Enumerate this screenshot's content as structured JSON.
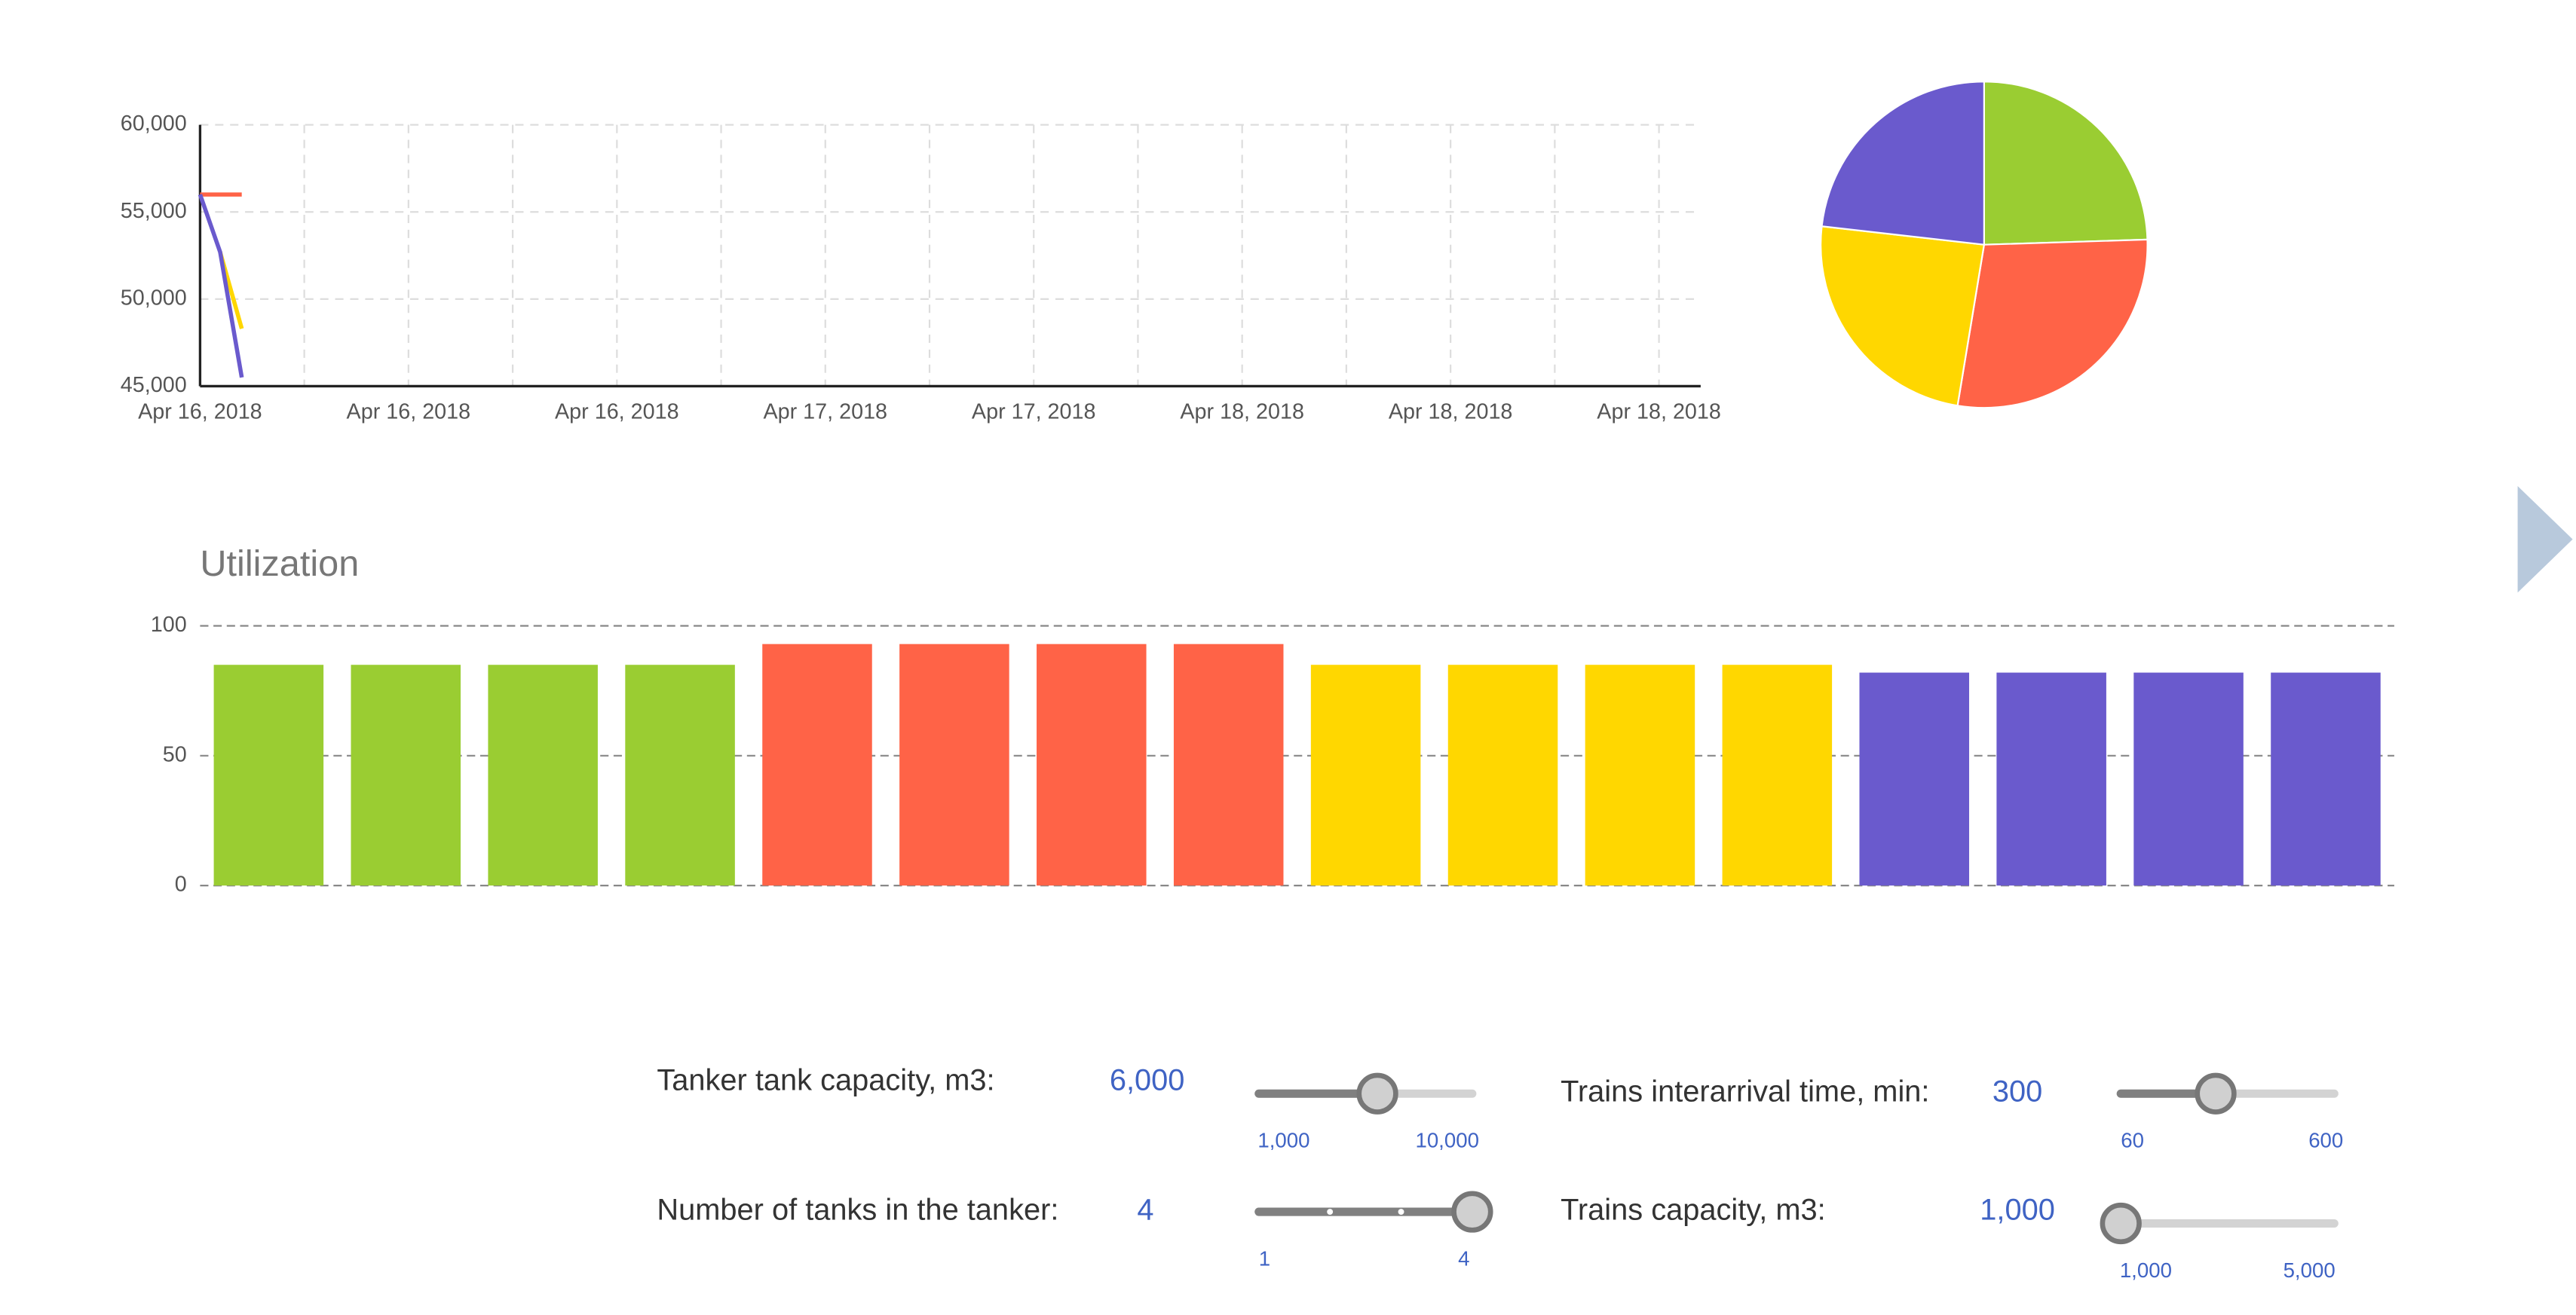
{
  "chart_data": [
    {
      "type": "line",
      "x": [
        0,
        0.77,
        1.6
      ],
      "xlim": [
        0,
        57.6
      ],
      "xticks": [
        {
          "value": 0,
          "label": "Apr 16, 2018"
        },
        {
          "value": 8,
          "label": "Apr 16, 2018"
        },
        {
          "value": 16,
          "label": "Apr 16, 2018"
        },
        {
          "value": 24,
          "label": "Apr 17, 2018"
        },
        {
          "value": 32,
          "label": "Apr 17, 2018"
        },
        {
          "value": 40,
          "label": "Apr 18, 2018"
        },
        {
          "value": 48,
          "label": "Apr 18, 2018"
        },
        {
          "value": 56,
          "label": "Apr 18, 2018"
        }
      ],
      "ylim": [
        45000,
        60000
      ],
      "yticks": [
        {
          "value": 45000,
          "label": "45,000"
        },
        {
          "value": 50000,
          "label": "50,000"
        },
        {
          "value": 55000,
          "label": "55,000"
        },
        {
          "value": 60000,
          "label": "60,000"
        }
      ],
      "grid": true,
      "series": [
        {
          "color": "#ff6347",
          "values": [
            56000,
            56000,
            56000
          ]
        },
        {
          "color": "#ffd700",
          "values": [
            null,
            52700,
            48300
          ]
        },
        {
          "color": "#6a5acd",
          "values": [
            56000,
            52700,
            45500
          ]
        }
      ]
    },
    {
      "type": "pie",
      "values": [
        24.5,
        28.1,
        24.2,
        23.2
      ],
      "colors": [
        "#9acd32",
        "#ff6347",
        "#ffd700",
        "#6a5acd"
      ]
    },
    {
      "type": "bar",
      "title": "Utilization",
      "values": [
        85,
        85,
        85,
        85,
        93,
        93,
        93,
        93,
        85,
        85,
        85,
        85,
        82,
        82,
        82,
        82
      ],
      "colors": [
        "#9acd32",
        "#9acd32",
        "#9acd32",
        "#9acd32",
        "#ff6347",
        "#ff6347",
        "#ff6347",
        "#ff6347",
        "#ffd700",
        "#ffd700",
        "#ffd700",
        "#ffd700",
        "#6a5acd",
        "#6a5acd",
        "#6a5acd",
        "#6a5acd"
      ],
      "ylim": [
        0,
        100
      ],
      "yticks": [
        0,
        50,
        100
      ],
      "grid": true
    }
  ],
  "controls": [
    {
      "label": "Tanker tank capacity, m3:",
      "value": 6000,
      "value_label": "6,000",
      "min": 1000,
      "min_label": "1,000",
      "max": 10000,
      "max_label": "10,000"
    },
    {
      "label": "Number of tanks in the tanker:",
      "value": 4,
      "min": 1,
      "max": 4
    },
    {
      "label": "Trains interarrival time, min:",
      "value": 300,
      "min": 60,
      "max": 600
    },
    {
      "label": "Trains capacity, m3:",
      "value": 1000,
      "value_label": "1,000",
      "min": 1000,
      "min_label": "1,000",
      "max": 5000,
      "max_label": "5,000"
    }
  ]
}
